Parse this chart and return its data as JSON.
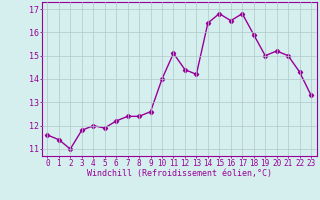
{
  "x": [
    0,
    1,
    2,
    3,
    4,
    5,
    6,
    7,
    8,
    9,
    10,
    11,
    12,
    13,
    14,
    15,
    16,
    17,
    18,
    19,
    20,
    21,
    22,
    23
  ],
  "y": [
    11.6,
    11.4,
    11.0,
    11.8,
    12.0,
    11.9,
    12.2,
    12.4,
    12.4,
    12.6,
    14.0,
    15.1,
    14.4,
    14.2,
    16.4,
    16.8,
    16.5,
    16.8,
    15.9,
    15.0,
    15.2,
    15.0,
    14.3,
    13.3
  ],
  "line_color": "#990099",
  "marker": "D",
  "marker_size": 2.2,
  "linewidth": 1.0,
  "xlabel": "Windchill (Refroidissement éolien,°C)",
  "xlabel_fontsize": 6.0,
  "ylabel_ticks": [
    11,
    12,
    13,
    14,
    15,
    16,
    17
  ],
  "xlim": [
    -0.5,
    23.5
  ],
  "ylim": [
    10.7,
    17.3
  ],
  "xticks": [
    0,
    1,
    2,
    3,
    4,
    5,
    6,
    7,
    8,
    9,
    10,
    11,
    12,
    13,
    14,
    15,
    16,
    17,
    18,
    19,
    20,
    21,
    22,
    23
  ],
  "grid_color": "#b0c8c8",
  "background_color": "#d5efef",
  "tick_fontsize": 5.5,
  "title": ""
}
